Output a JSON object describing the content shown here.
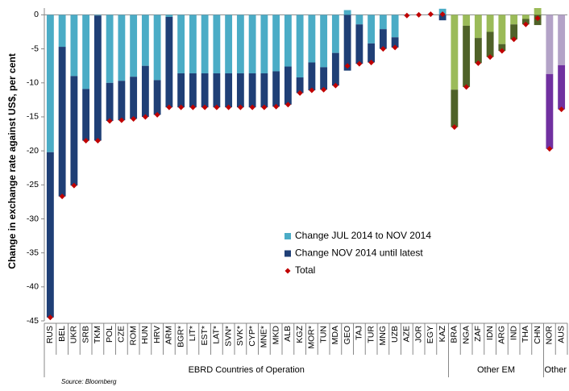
{
  "chart_data": {
    "type": "bar",
    "stacked": true,
    "y_label": "Change in exchange rate against US$, per cent",
    "source": "Source: Bloomberg",
    "categories": [
      "RUS",
      "BEL",
      "UKR",
      "SRB",
      "TKM",
      "POL",
      "CZE",
      "ROM",
      "HUN",
      "HRV",
      "ARM",
      "BGR*",
      "LIT*",
      "EST*",
      "LAT*",
      "SVN*",
      "SVK*",
      "CYP*",
      "MNE*",
      "MKD",
      "ALB",
      "KGZ",
      "MOR*",
      "TUN",
      "MDA",
      "GEO",
      "TAJ",
      "TUR",
      "MNG",
      "UZB",
      "AZE",
      "JOR",
      "EGY",
      "KAZ",
      "BRA",
      "NGA",
      "ZAF",
      "IDN",
      "ARG",
      "IND",
      "THA",
      "CHN",
      "NOR",
      "AUS"
    ],
    "series": [
      {
        "name": "Change JUL 2014 to NOV 2014",
        "color": "#4bacc6",
        "values": [
          -20.2,
          -4.7,
          -9.0,
          -10.9,
          -0.1,
          -10.0,
          -9.7,
          -9.1,
          -7.5,
          -9.6,
          -0.3,
          -8.6,
          -8.6,
          -8.6,
          -8.6,
          -8.6,
          -8.6,
          -8.6,
          -8.6,
          -8.3,
          -7.6,
          -9.2,
          -7.0,
          -7.7,
          -5.6,
          0.7,
          -1.4,
          -4.2,
          -2.1,
          -3.3,
          -0.1,
          0,
          0.1,
          0.9,
          -11.0,
          -1.6,
          -3.4,
          -2.5,
          -4.3,
          -1.4,
          -0.6,
          1.0,
          -8.7,
          -7.4
        ]
      },
      {
        "name": "Change NOV 2014 until latest",
        "color": "#1f3f76",
        "values": [
          -24.3,
          -22.0,
          -16.1,
          -7.6,
          -18.4,
          -5.6,
          -5.8,
          -6.2,
          -7.5,
          -5.1,
          -13.3,
          -5.0,
          -5.0,
          -5.0,
          -5.0,
          -5.0,
          -5.0,
          -5.0,
          -5.0,
          -5.2,
          -5.6,
          -2.3,
          -4.1,
          -3.3,
          -4.8,
          -8.2,
          -5.8,
          -2.8,
          -2.9,
          -1.5,
          0,
          0,
          0,
          -0.8,
          -5.5,
          -9.0,
          -3.7,
          -3.7,
          -1.0,
          -2.2,
          -0.8,
          -1.5,
          -11.0,
          -6.5
        ]
      },
      {
        "name": "Total",
        "color": "#c00000",
        "marker": "diamond",
        "values": [
          -44.5,
          -26.7,
          -25.1,
          -18.5,
          -18.5,
          -15.6,
          -15.5,
          -15.3,
          -15.0,
          -14.7,
          -13.6,
          -13.6,
          -13.6,
          -13.6,
          -13.6,
          -13.6,
          -13.6,
          -13.6,
          -13.6,
          -13.5,
          -13.2,
          -11.5,
          -11.1,
          -11.0,
          -10.4,
          -7.5,
          -7.2,
          -7.0,
          -5.0,
          -4.8,
          -0.1,
          0,
          0.1,
          0.1,
          -16.5,
          -10.6,
          -7.1,
          -6.2,
          -5.3,
          -3.6,
          -1.4,
          -0.5,
          -19.7,
          -13.9
        ]
      }
    ],
    "groups": [
      {
        "label": "EBRD Countries of Operation",
        "first": 0,
        "last": 33,
        "colors": [
          "#4bacc6",
          "#1f3f76"
        ]
      },
      {
        "label": "Other EM",
        "first": 34,
        "last": 41,
        "colors": [
          "#9bbb59",
          "#4f6228"
        ]
      },
      {
        "label": "Other",
        "first": 42,
        "last": 43,
        "colors": [
          "#b3a2c7",
          "#7030a0"
        ]
      }
    ],
    "ylim": [
      -45,
      1
    ],
    "yticks": [
      0,
      -5,
      -10,
      -15,
      -20,
      -25,
      -30,
      -35,
      -40,
      -45
    ],
    "legend": "center-right"
  }
}
